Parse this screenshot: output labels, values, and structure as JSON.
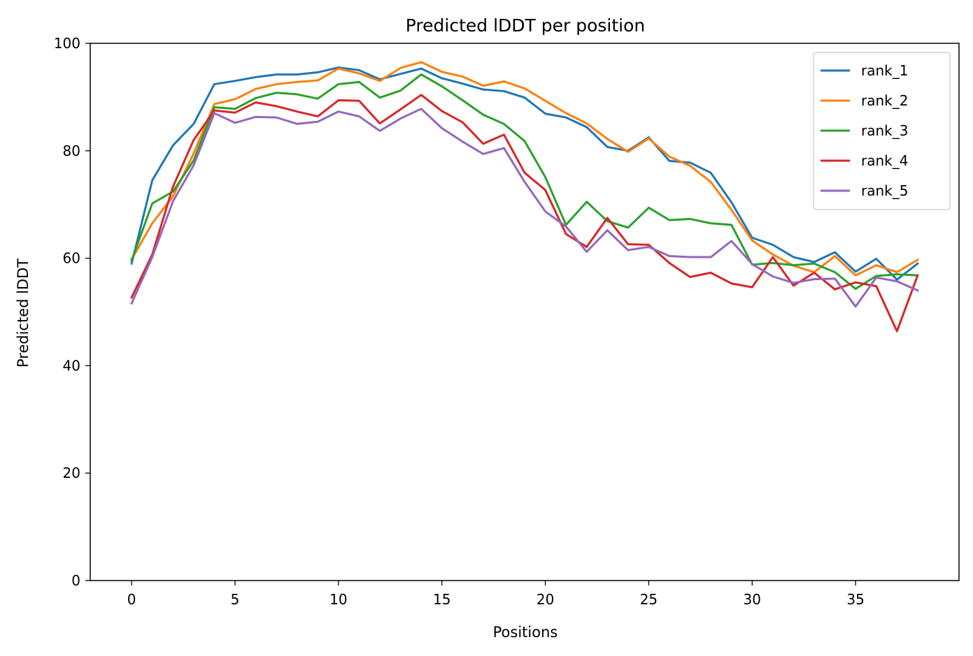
{
  "chart_data": {
    "type": "line",
    "title": "Predicted lDDT per position",
    "xlabel": "Positions",
    "ylabel": "Predicted lDDT",
    "xlim": [
      -2,
      40
    ],
    "ylim": [
      0,
      100
    ],
    "xticks": [
      0,
      5,
      10,
      15,
      20,
      25,
      30,
      35
    ],
    "yticks": [
      0,
      20,
      40,
      60,
      80,
      100
    ],
    "grid": false,
    "legend_position": "top-right",
    "x": [
      0,
      1,
      2,
      3,
      4,
      5,
      6,
      7,
      8,
      9,
      10,
      11,
      12,
      13,
      14,
      15,
      16,
      17,
      18,
      19,
      20,
      21,
      22,
      23,
      24,
      25,
      26,
      27,
      28,
      29,
      30,
      31,
      32,
      33,
      34,
      35,
      36,
      37,
      38
    ],
    "series": [
      {
        "name": "rank_1",
        "color": "#1f77b4",
        "values": [
          59.0,
          74.5,
          81.0,
          85.0,
          92.4,
          93.0,
          93.7,
          94.2,
          94.2,
          94.6,
          95.5,
          95.0,
          93.3,
          94.3,
          95.3,
          93.5,
          92.5,
          91.4,
          91.1,
          89.9,
          86.9,
          86.2,
          84.4,
          80.7,
          80.0,
          82.5,
          78.1,
          77.8,
          75.9,
          70.4,
          63.8,
          62.5,
          60.2,
          59.3,
          61.1,
          57.5,
          59.9,
          56.0,
          59.0
        ]
      },
      {
        "name": "rank_2",
        "color": "#ff7f0e",
        "values": [
          59.8,
          66.5,
          71.5,
          79.5,
          88.7,
          89.6,
          91.5,
          92.4,
          92.8,
          93.1,
          95.3,
          94.4,
          93.0,
          95.4,
          96.5,
          94.7,
          93.8,
          92.1,
          92.9,
          91.6,
          89.3,
          87.0,
          85.1,
          82.2,
          79.8,
          82.3,
          78.9,
          77.2,
          74.2,
          69.0,
          63.3,
          60.7,
          58.6,
          57.4,
          60.4,
          56.8,
          58.7,
          57.4,
          59.7
        ]
      },
      {
        "name": "rank_3",
        "color": "#2ca02c",
        "values": [
          59.6,
          70.2,
          72.4,
          78.2,
          88.1,
          87.8,
          89.8,
          90.8,
          90.5,
          89.7,
          92.4,
          92.8,
          89.9,
          91.2,
          94.2,
          92.0,
          89.4,
          86.7,
          85.0,
          81.8,
          75.1,
          66.2,
          70.5,
          66.9,
          65.7,
          69.4,
          67.1,
          67.3,
          66.5,
          66.2,
          58.8,
          59.1,
          58.7,
          59.0,
          57.4,
          54.3,
          56.7,
          57.0,
          56.8
        ]
      },
      {
        "name": "rank_4",
        "color": "#d62728",
        "values": [
          52.7,
          60.7,
          73.3,
          82.0,
          87.5,
          87.1,
          89.0,
          88.3,
          87.3,
          86.4,
          89.4,
          89.3,
          85.1,
          87.7,
          90.4,
          87.4,
          85.3,
          81.3,
          83.0,
          75.9,
          72.7,
          64.5,
          62.1,
          67.5,
          62.6,
          62.5,
          59.1,
          56.5,
          57.3,
          55.3,
          54.6,
          60.2,
          54.9,
          57.3,
          54.2,
          55.5,
          54.8,
          46.4,
          56.8
        ]
      },
      {
        "name": "rank_5",
        "color": "#9467bd",
        "values": [
          51.6,
          60.2,
          70.6,
          77.3,
          87.0,
          85.2,
          86.3,
          86.2,
          85.0,
          85.4,
          87.3,
          86.4,
          83.7,
          86.0,
          87.8,
          84.2,
          81.7,
          79.4,
          80.5,
          74.2,
          68.7,
          65.9,
          61.2,
          65.2,
          61.5,
          62.1,
          60.4,
          60.2,
          60.2,
          63.2,
          58.9,
          56.6,
          55.4,
          56.1,
          56.2,
          51.0,
          56.4,
          55.7,
          54.0
        ]
      }
    ]
  }
}
